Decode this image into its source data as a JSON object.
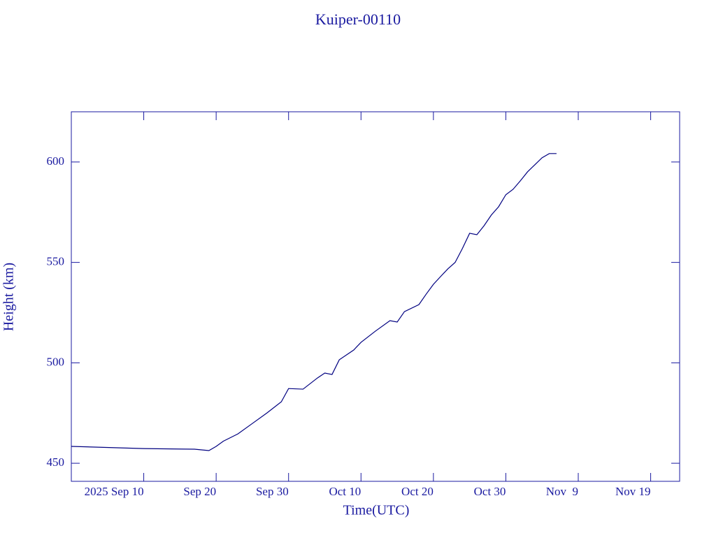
{
  "chart_data": {
    "type": "line",
    "title": "Kuiper-00110",
    "xlabel": "Time(UTC)",
    "ylabel": "Height (km)",
    "x": [
      "2025-08-31",
      "2025-09-10",
      "2025-09-17",
      "2025-09-19",
      "2025-09-20",
      "2025-09-21",
      "2025-09-23",
      "2025-09-25",
      "2025-09-27",
      "2025-09-29",
      "2025-09-30",
      "2025-10-02",
      "2025-10-04",
      "2025-10-05",
      "2025-10-06",
      "2025-10-07",
      "2025-10-09",
      "2025-10-10",
      "2025-10-12",
      "2025-10-14",
      "2025-10-15",
      "2025-10-16",
      "2025-10-18",
      "2025-10-19",
      "2025-10-20",
      "2025-10-21",
      "2025-10-22",
      "2025-10-23",
      "2025-10-24",
      "2025-10-25",
      "2025-10-26",
      "2025-10-27",
      "2025-10-28",
      "2025-10-29",
      "2025-10-30",
      "2025-10-31",
      "2025-11-01",
      "2025-11-02",
      "2025-11-03",
      "2025-11-04",
      "2025-11-05",
      "2025-11-06"
    ],
    "series": [
      {
        "name": "Height",
        "color": "#000080",
        "values": [
          458.4,
          457.3,
          457,
          456.3,
          458.4,
          461,
          464.6,
          469.8,
          475,
          480.6,
          487.2,
          486.9,
          492.5,
          494.9,
          494.2,
          501.5,
          506.4,
          510.2,
          515.8,
          521,
          520.3,
          525.5,
          529,
          534.2,
          539.1,
          543,
          546.8,
          550,
          556.9,
          564.5,
          563.8,
          568.3,
          573.6,
          577.7,
          583.7,
          586.4,
          590.6,
          595.1,
          598.6,
          602.1,
          604.2,
          604.2
        ]
      }
    ],
    "xlim": [
      "2025-08-31",
      "2025-11-23"
    ],
    "xticks": [
      {
        "value": "2025-09-10",
        "label": "2025 Sep 10"
      },
      {
        "value": "2025-09-20",
        "label": "Sep 20"
      },
      {
        "value": "2025-09-30",
        "label": "Sep 30"
      },
      {
        "value": "2025-10-10",
        "label": "Oct 10"
      },
      {
        "value": "2025-10-20",
        "label": "Oct 20"
      },
      {
        "value": "2025-10-30",
        "label": "Oct 30"
      },
      {
        "value": "2025-11-09",
        "label": "Nov  9"
      },
      {
        "value": "2025-11-19",
        "label": "Nov 19"
      }
    ],
    "ylim": [
      441,
      625
    ],
    "yticks": [
      450,
      500,
      550,
      600
    ],
    "grid": false
  }
}
